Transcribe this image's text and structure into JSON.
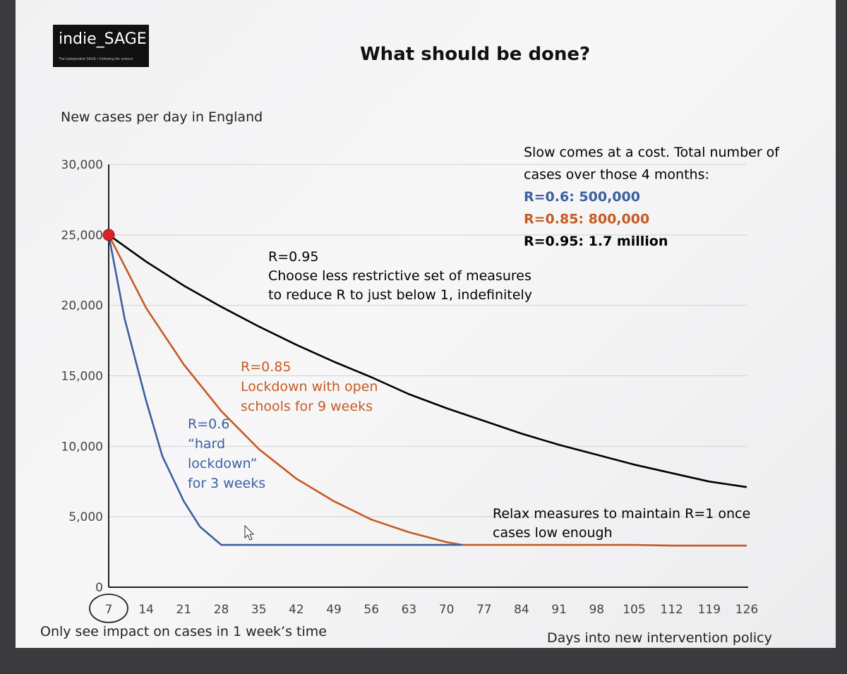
{
  "logo": {
    "name": "indie_SAGE",
    "tagline": "The Independent SAGE • Following the science"
  },
  "slide_title": "What should be done?",
  "chart_data": {
    "type": "line",
    "title": "New cases per day in England",
    "xlabel": "Days into new intervention policy",
    "ylabel": "",
    "xlim": [
      7,
      126
    ],
    "ylim": [
      0,
      30000
    ],
    "x_ticks": [
      7,
      14,
      21,
      28,
      35,
      42,
      49,
      56,
      63,
      70,
      77,
      84,
      91,
      98,
      105,
      112,
      119,
      126
    ],
    "y_ticks": [
      0,
      5000,
      10000,
      15000,
      20000,
      25000,
      30000
    ],
    "y_tick_labels": [
      "0",
      "5,000",
      "10,000",
      "15,000",
      "20,000",
      "25,000",
      "30,000"
    ],
    "grid": "horizontal",
    "start_point": {
      "x": 7,
      "y": 25000,
      "color": "#d8232a"
    },
    "series": [
      {
        "color": "#000000",
        "x": [
          7,
          14,
          21,
          28,
          35,
          42,
          49,
          56,
          63,
          70,
          77,
          84,
          91,
          98,
          105,
          112,
          119,
          126
        ],
        "y": [
          25000,
          23100,
          21400,
          19900,
          18500,
          17200,
          16000,
          14900,
          13700,
          12700,
          11800,
          10900,
          10100,
          9400,
          8700,
          8100,
          7500,
          7100
        ]
      },
      {
        "color": "#c65a23",
        "x": [
          7,
          14,
          21,
          28,
          35,
          42,
          49,
          56,
          63,
          70,
          73,
          77,
          84,
          91,
          98,
          105,
          112,
          119,
          126
        ],
        "y": [
          25000,
          19800,
          15800,
          12500,
          9800,
          7700,
          6100,
          4800,
          3900,
          3200,
          3000,
          3000,
          3000,
          3000,
          3000,
          3000,
          2950,
          2950,
          2950
        ]
      },
      {
        "color": "#3d5fa0",
        "x": [
          7,
          10,
          14,
          17,
          21,
          24,
          28,
          30,
          35,
          42,
          49,
          56,
          63,
          70,
          73
        ],
        "y": [
          25000,
          19000,
          13200,
          9300,
          6100,
          4300,
          3000,
          3000,
          3000,
          3000,
          3000,
          3000,
          3000,
          3000,
          3000
        ]
      }
    ],
    "annotations": {
      "r095": {
        "color": "#000000",
        "lines": [
          "R=0.95",
          "Choose less restrictive set of measures",
          "to reduce R to just below 1, indefinitely"
        ]
      },
      "r085": {
        "color": "#c65a23",
        "lines": [
          "R=0.85",
          "Lockdown with open",
          "schools for 9 weeks"
        ]
      },
      "r06": {
        "color": "#3d5fa0",
        "lines": [
          "R=0.6",
          "“hard",
          "lockdown”",
          "for 3 weeks"
        ]
      },
      "relax": {
        "color": "#000000",
        "lines": [
          "Relax measures to maintain R=1 once",
          "cases low enough"
        ]
      },
      "impact_note": "Only see impact on cases in 1 week’s time"
    },
    "cost_box": {
      "lines": [
        {
          "text": "Slow comes at a cost. Total number of",
          "color": "#000000",
          "bold": false
        },
        {
          "text": "cases over those 4 months:",
          "color": "#000000",
          "bold": false
        },
        {
          "text": "R=0.6: 500,000",
          "color": "#3d5fa0",
          "bold": true
        },
        {
          "text": "R=0.85: 800,000",
          "color": "#c65a23",
          "bold": true
        },
        {
          "text": "R=0.95: 1.7 million",
          "color": "#000000",
          "bold": true
        }
      ]
    }
  }
}
